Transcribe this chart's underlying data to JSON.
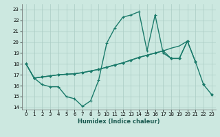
{
  "title": "",
  "xlabel": "Humidex (Indice chaleur)",
  "bg_color": "#cce8e0",
  "line_color": "#1a7a6a",
  "grid_color": "#aaccc4",
  "xlim": [
    -0.5,
    23.5
  ],
  "ylim": [
    13.8,
    23.5
  ],
  "xticks": [
    0,
    1,
    2,
    3,
    4,
    5,
    6,
    7,
    8,
    9,
    10,
    11,
    12,
    13,
    14,
    15,
    16,
    17,
    18,
    19,
    20,
    21,
    22,
    23
  ],
  "yticks": [
    14,
    15,
    16,
    17,
    18,
    19,
    20,
    21,
    22,
    23
  ],
  "series": [
    {
      "x": [
        0,
        1,
        2,
        3,
        4,
        5,
        6,
        7,
        8,
        9,
        10,
        11,
        12,
        13,
        14,
        15,
        16,
        17,
        18,
        19,
        20
      ],
      "y": [
        18.0,
        16.7,
        16.8,
        16.9,
        17.0,
        17.05,
        17.1,
        17.2,
        17.35,
        17.5,
        17.7,
        17.9,
        18.1,
        18.35,
        18.6,
        18.8,
        19.0,
        19.2,
        19.45,
        19.65,
        20.1
      ],
      "marker": null,
      "linewidth": 1.0
    },
    {
      "x": [
        0,
        1,
        2,
        3,
        4,
        5,
        6,
        7,
        8,
        9,
        10,
        11,
        12,
        13,
        14,
        15,
        16,
        17,
        18,
        19,
        20,
        21,
        22,
        23
      ],
      "y": [
        18.0,
        16.7,
        16.8,
        16.9,
        17.0,
        17.05,
        17.1,
        17.2,
        17.35,
        17.5,
        17.7,
        17.9,
        18.1,
        18.35,
        18.6,
        18.8,
        19.0,
        19.2,
        18.5,
        18.5,
        20.1,
        18.2,
        16.1,
        15.2
      ],
      "marker": "D",
      "linewidth": 1.0
    },
    {
      "x": [
        0,
        1,
        2,
        3,
        4,
        5,
        6,
        7,
        8,
        9,
        10,
        11,
        12,
        13,
        14,
        15,
        16,
        17,
        18,
        19,
        20,
        21
      ],
      "y": [
        18.0,
        16.7,
        16.1,
        15.9,
        15.9,
        15.0,
        14.8,
        14.1,
        14.6,
        16.5,
        19.9,
        21.3,
        22.3,
        22.5,
        22.8,
        19.2,
        22.5,
        19.0,
        18.5,
        18.5,
        20.1,
        18.2
      ],
      "marker": "+",
      "linewidth": 1.0
    }
  ]
}
